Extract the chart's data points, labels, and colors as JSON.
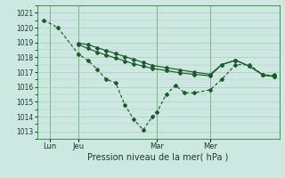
{
  "background_color": "#cce8e0",
  "grid_color": "#aaccbb",
  "line_color": "#1a5c2a",
  "xlabel": "Pression niveau de la mer( hPa )",
  "ylim": [
    1012.5,
    1021.5
  ],
  "yticks": [
    1013,
    1014,
    1015,
    1016,
    1017,
    1018,
    1019,
    1020,
    1021
  ],
  "xlim": [
    0,
    10.5
  ],
  "vlines_x": [
    0.55,
    1.8,
    5.2,
    7.5
  ],
  "vlines_labels": [
    "Lun",
    "Jeu",
    "Mar",
    "Mer"
  ],
  "series1_x": [
    0.3,
    0.9,
    1.8,
    2.2,
    2.6,
    3.0,
    3.4,
    3.8,
    4.2,
    4.6,
    5.0,
    5.2,
    5.6,
    6.0,
    6.4,
    6.8,
    7.5,
    8.0,
    8.6,
    9.2,
    9.8,
    10.3
  ],
  "series1_y": [
    1020.5,
    1020.0,
    1018.2,
    1017.8,
    1017.2,
    1016.5,
    1016.3,
    1014.8,
    1013.8,
    1013.1,
    1014.0,
    1014.3,
    1015.5,
    1016.1,
    1015.6,
    1015.6,
    1015.8,
    1016.5,
    1017.5,
    1017.5,
    1016.8,
    1016.8
  ],
  "series2_x": [
    1.8,
    2.2,
    2.6,
    3.0,
    3.4,
    3.8,
    4.2,
    4.6,
    5.0,
    5.6,
    6.2,
    6.8,
    7.5,
    8.0,
    8.6,
    9.2,
    9.8,
    10.3
  ],
  "series2_y": [
    1018.85,
    1018.6,
    1018.35,
    1018.15,
    1017.95,
    1017.75,
    1017.55,
    1017.4,
    1017.25,
    1017.1,
    1016.95,
    1016.85,
    1016.75,
    1017.5,
    1017.8,
    1017.4,
    1016.8,
    1016.7
  ],
  "series3_x": [
    1.8,
    2.2,
    2.6,
    3.0,
    3.4,
    3.8,
    4.2,
    4.6,
    5.0,
    5.6,
    6.2,
    6.8,
    7.5,
    8.0,
    8.6,
    9.2,
    9.8,
    10.3
  ],
  "series3_y": [
    1018.95,
    1018.85,
    1018.65,
    1018.45,
    1018.25,
    1018.05,
    1017.85,
    1017.65,
    1017.45,
    1017.3,
    1017.15,
    1017.0,
    1016.85,
    1017.5,
    1017.8,
    1017.4,
    1016.8,
    1016.7
  ]
}
